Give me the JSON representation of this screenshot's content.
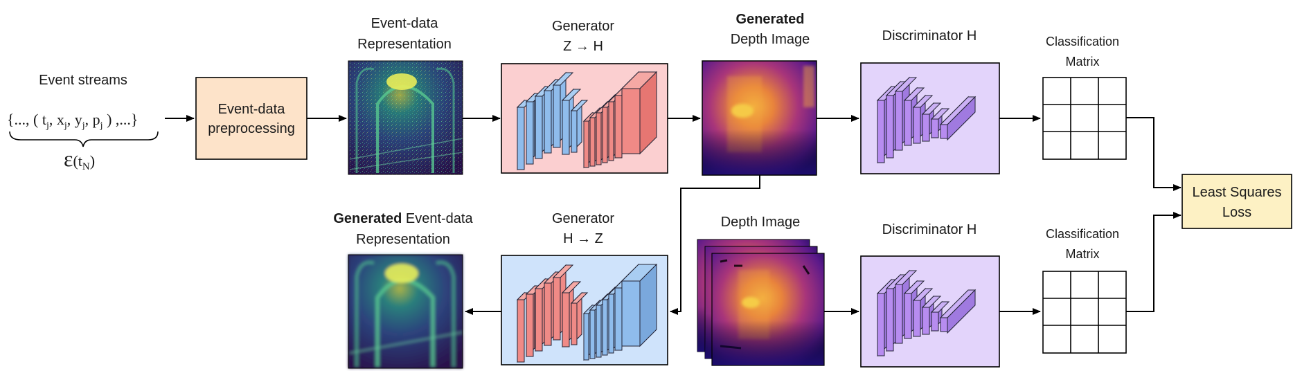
{
  "event_streams": {
    "title": "Event streams",
    "formula": "{..., ( t",
    "sub_j": "j",
    "x": ", x",
    "y": ", y",
    "p": ", p",
    "tail": " ) ,...}",
    "epsilon": "ε",
    "eps_arg": "(t",
    "sub_N": "N",
    "eps_close": ")"
  },
  "preprocessing": {
    "line1": "Event-data",
    "line2": "preprocessing"
  },
  "event_repr": {
    "line1": "Event-data",
    "line2": "Representation"
  },
  "generator_top": {
    "line1": "Generator",
    "line2": "Z → H"
  },
  "generated_depth": {
    "line1_bold": "Generated",
    "line2": "Depth Image"
  },
  "disc_top": {
    "label": "Discriminator H"
  },
  "class_top": {
    "line1": "Classification",
    "line2": "Matrix"
  },
  "loss": {
    "line1": "Least Squares",
    "line2": "Loss"
  },
  "gen_event_repr": {
    "bold": "Generated",
    "rest": " Event-data",
    "line2": "Representation"
  },
  "generator_bottom": {
    "line1": "Generator",
    "line2": "H → Z"
  },
  "depth_image": {
    "label": "Depth Image"
  },
  "disc_bottom": {
    "label": "Discriminator H"
  },
  "class_bottom": {
    "line1": "Classification",
    "line2": "Matrix"
  },
  "colors": {
    "preprocessing_fill": "#fde3c9",
    "generator_top_fill": "#fbcfd0",
    "generator_bottom_fill": "#cfe3fb",
    "discriminator_fill": "#e3d4fb",
    "loss_fill": "#fdf1c4",
    "blue_layer": "#8fbcec",
    "red_layer": "#f08a86",
    "purple_layer": "#b78cf0"
  }
}
